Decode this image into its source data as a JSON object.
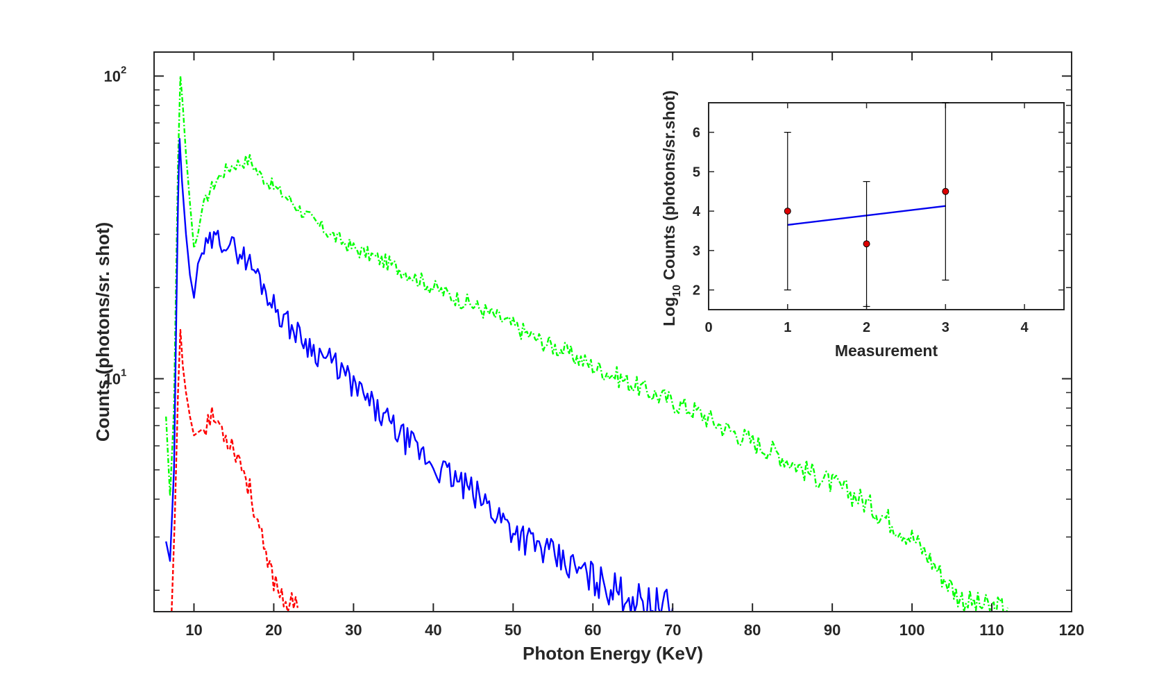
{
  "chart_data": [
    {
      "type": "line",
      "name": "main",
      "title": "",
      "xlabel": "Photon Energy (KeV)",
      "ylabel": "Counts (photons/sr. shot)",
      "xlim": [
        5,
        120
      ],
      "ylim": [
        1.7,
        120
      ],
      "yscale": "log",
      "grid": false,
      "xticks": [
        10,
        20,
        30,
        40,
        50,
        60,
        70,
        80,
        90,
        100,
        110,
        120
      ],
      "xtick_labels": [
        "10",
        "20",
        "30",
        "40",
        "50",
        "60",
        "70",
        "80",
        "90",
        "100",
        "110",
        "120"
      ],
      "yticks": [
        {
          "value": 10,
          "base": "10",
          "exp": "1"
        },
        {
          "value": 100,
          "base": "10",
          "exp": "2"
        }
      ],
      "series": [
        {
          "name": "green",
          "color": "#00ff00",
          "style": "dashdot",
          "x": [
            6.5,
            7.0,
            7.5,
            8.0,
            8.3,
            8.6,
            9.0,
            9.5,
            10.0,
            10.5,
            11,
            12,
            13,
            14,
            15,
            16,
            17,
            18,
            20,
            22,
            25,
            28,
            30,
            33,
            36,
            40,
            43,
            46,
            50,
            53,
            56,
            60,
            63,
            66,
            70,
            73,
            76,
            80,
            83,
            86,
            90,
            93,
            96,
            100,
            102,
            104,
            106,
            108,
            110,
            112
          ],
          "values": [
            7.5,
            4.1,
            8,
            52,
            100,
            80,
            55,
            38,
            27,
            30,
            36,
            42,
            46,
            49,
            51,
            52,
            53,
            48,
            43,
            39,
            33,
            29,
            27,
            25,
            23,
            20,
            18.5,
            17,
            15,
            13.5,
            12.5,
            11,
            10.2,
            9.3,
            8.4,
            7.8,
            7,
            6.2,
            5.7,
            5.1,
            4.5,
            4.1,
            3.6,
            3.0,
            2.6,
            2.2,
            1.9,
            1.8,
            1.75,
            1.75
          ]
        },
        {
          "name": "blue",
          "color": "#0000ff",
          "style": "solid",
          "x": [
            6.5,
            7.0,
            7.5,
            8.0,
            8.2,
            8.5,
            9.0,
            9.5,
            10.0,
            10.5,
            11,
            12,
            13,
            14,
            15,
            16,
            17,
            18,
            20,
            22,
            25,
            28,
            30,
            33,
            36,
            40,
            43,
            46,
            50,
            53,
            56,
            60,
            63,
            66,
            68,
            70
          ],
          "values": [
            2.9,
            2.5,
            5,
            38,
            62,
            45,
            30,
            22,
            18.5,
            24,
            26,
            28,
            29,
            28.5,
            27,
            26,
            24,
            22,
            17.5,
            15,
            12.5,
            11,
            9.5,
            7.8,
            6.5,
            5.2,
            4.6,
            4,
            3.2,
            2.8,
            2.5,
            2.2,
            2.0,
            1.85,
            1.8,
            1.75
          ]
        },
        {
          "name": "red",
          "color": "#ff0000",
          "style": "dashed",
          "x": [
            7.2,
            7.6,
            8.0,
            8.3,
            8.6,
            9.0,
            9.5,
            10,
            11,
            12,
            13,
            14,
            15,
            16,
            17,
            18,
            19,
            20,
            21,
            22,
            23
          ],
          "values": [
            1.7,
            3.5,
            9,
            14.5,
            11,
            9,
            7.5,
            6.5,
            6.8,
            7.5,
            7.2,
            6.5,
            6,
            5.2,
            4.3,
            3.4,
            2.5,
            2.2,
            1.95,
            1.8,
            1.75
          ]
        }
      ]
    },
    {
      "type": "scatter",
      "name": "inset",
      "xlabel": "Measurement",
      "ylabel_prefix": "Log",
      "ylabel_sub": "10",
      "ylabel_rest": " Counts (photons/sr.shot)",
      "xlim": [
        0,
        4.5
      ],
      "ylim": [
        1.5,
        6.75
      ],
      "xticks": [
        0,
        1,
        2,
        3,
        4
      ],
      "xtick_labels": [
        "0",
        "1",
        "2",
        "3",
        "4"
      ],
      "yticks": [
        2,
        3,
        4,
        5,
        6
      ],
      "ytick_labels": [
        "2",
        "3",
        "4",
        "5",
        "6"
      ],
      "points": [
        {
          "x": 1,
          "y": 4.0,
          "err_low": 2.0,
          "err_high": 6.0
        },
        {
          "x": 2,
          "y": 3.17,
          "err_low": 1.58,
          "err_high": 4.75
        },
        {
          "x": 3,
          "y": 4.5,
          "err_low": 2.25,
          "err_high": 6.75
        }
      ],
      "point_color": "#dd0000",
      "fit_line": {
        "x": [
          1,
          3
        ],
        "y": [
          3.65,
          4.13
        ],
        "color": "#0000ee"
      }
    }
  ]
}
